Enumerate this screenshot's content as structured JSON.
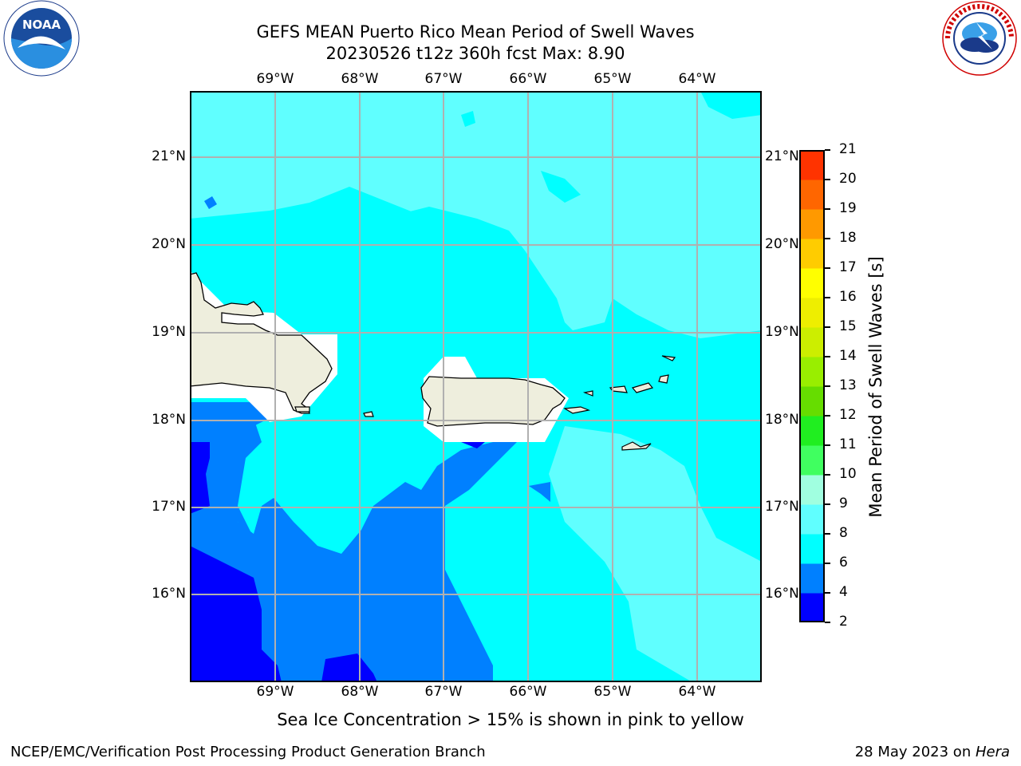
{
  "header": {
    "title_line1": "GEFS MEAN Puerto Rico Mean Period of Swell Waves",
    "title_line2": "20230526 t12z 360h fcst   Max: 8.90"
  },
  "map": {
    "lon_ticks": [
      "69°W",
      "68°W",
      "67°W",
      "66°W",
      "65°W",
      "64°W"
    ],
    "lat_ticks": [
      "21°N",
      "20°N",
      "19°N",
      "18°N",
      "17°N",
      "16°N"
    ],
    "colors": {
      "water_cyan": "#00ffff",
      "water_lightcyan": "#60ffff",
      "water_blue": "#0080ff",
      "water_deepblue": "#0000ff",
      "land": "#eeeedd",
      "grid": "#b0b0b0"
    }
  },
  "colorbar": {
    "label": "Mean Period of Swell Waves [s]",
    "ticks": [
      "2",
      "4",
      "6",
      "8",
      "9",
      "10",
      "11",
      "12",
      "13",
      "14",
      "15",
      "16",
      "17",
      "18",
      "19",
      "20",
      "21"
    ],
    "colors": [
      "#0000ff",
      "#0080ff",
      "#00ffff",
      "#60ffff",
      "#a0ffe0",
      "#40ff60",
      "#20ee20",
      "#66dd00",
      "#99ee00",
      "#ccee00",
      "#eeee00",
      "#ffff00",
      "#ffcc00",
      "#ff9900",
      "#ff6600",
      "#ff3300",
      "#ff0000"
    ]
  },
  "caption": "Sea Ice Concentration > 15% is shown in pink to yellow",
  "footer": {
    "left": "NCEP/EMC/Verification Post Processing Product Generation Branch",
    "date": "28 May 2023 on ",
    "machine": "Hera"
  },
  "logos": {
    "noaa_text": "NOAA",
    "nws_text": "NATIONAL WEATHER SERVICE"
  }
}
